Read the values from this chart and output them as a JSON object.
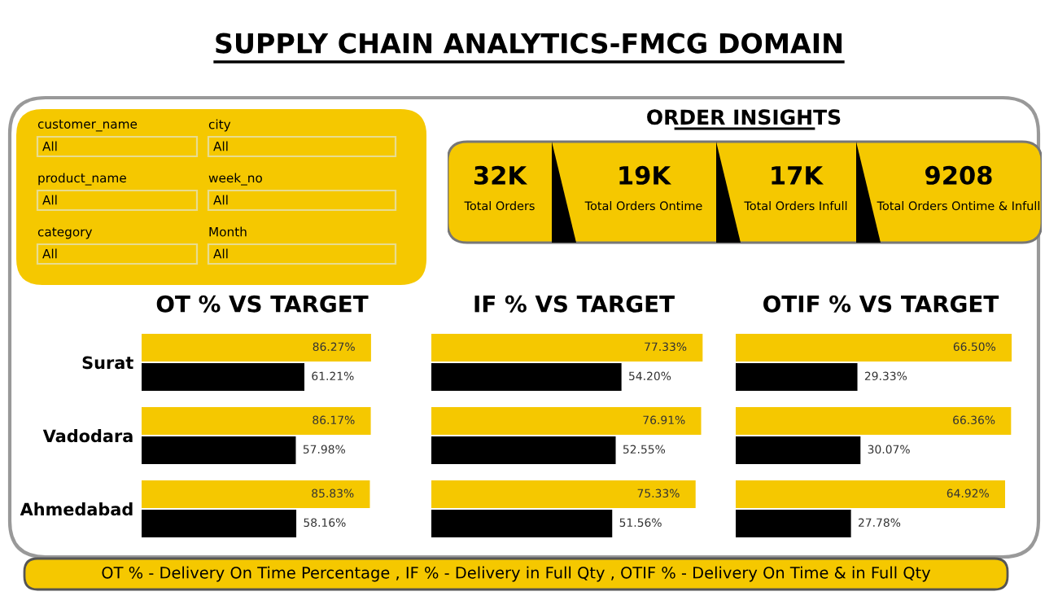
{
  "chart_data": [
    {
      "type": "other",
      "title": "SUPPLY CHAIN ANALYTICS-FMCG DOMAIN",
      "annotations": [
        "OT % - Delivery On Time Percentage , IF % - Delivery in Full Qty , OTIF % - Delivery On Time & in Full Qty"
      ]
    },
    {
      "type": "other",
      "categories": [
        "customer_name",
        "city",
        "product_name",
        "week_no",
        "category",
        "Month"
      ],
      "value_labels": [
        "All",
        "All",
        "All",
        "All",
        "All",
        "All"
      ],
      "color": "#f5c800"
    },
    {
      "type": "other",
      "title": "ORDER INSIGHTS",
      "categories": [
        "Total Orders",
        "Total Orders Ontime",
        "Total Orders Infull",
        "Total Orders Ontime & Infull"
      ],
      "value_labels": [
        "32K",
        "19K",
        "17K",
        "9208"
      ],
      "color": "#f5c800"
    },
    {
      "type": "bar",
      "orientation": "horizontal",
      "title": "OT % VS TARGET",
      "categories": [
        "Surat",
        "Vadodara",
        "Ahmedabad"
      ],
      "tick_labels": "y",
      "series": [
        {
          "color": "#f5c800",
          "values": [
            86.27,
            86.17,
            85.83
          ],
          "value_labels": [
            "86.27%",
            "86.17%",
            "85.83%"
          ]
        },
        {
          "color": "#000000",
          "values": [
            61.21,
            57.98,
            58.16
          ],
          "value_labels": [
            "61.21%",
            "57.98%",
            "58.16%"
          ]
        }
      ]
    },
    {
      "type": "bar",
      "orientation": "horizontal",
      "title": "IF % VS TARGET",
      "categories": [
        null,
        null,
        null
      ],
      "tick_labels": false,
      "series": [
        {
          "color": "#f5c800",
          "values": [
            77.33,
            76.91,
            75.33
          ],
          "value_labels": [
            "77.33%",
            "76.91%",
            "75.33%"
          ]
        },
        {
          "color": "#000000",
          "values": [
            54.2,
            52.55,
            51.56
          ],
          "value_labels": [
            "54.20%",
            "52.55%",
            "51.56%"
          ]
        }
      ]
    },
    {
      "type": "bar",
      "orientation": "horizontal",
      "title": "OTIF % VS TARGET",
      "categories": [
        null,
        null,
        null
      ],
      "tick_labels": false,
      "series": [
        {
          "color": "#f5c800",
          "values": [
            66.5,
            66.36,
            64.92
          ],
          "value_labels": [
            "66.50%",
            "66.36%",
            "64.92%"
          ]
        },
        {
          "color": "#000000",
          "values": [
            29.33,
            30.07,
            27.78
          ],
          "value_labels": [
            "29.33%",
            "30.07%",
            "27.78%"
          ]
        }
      ]
    }
  ]
}
